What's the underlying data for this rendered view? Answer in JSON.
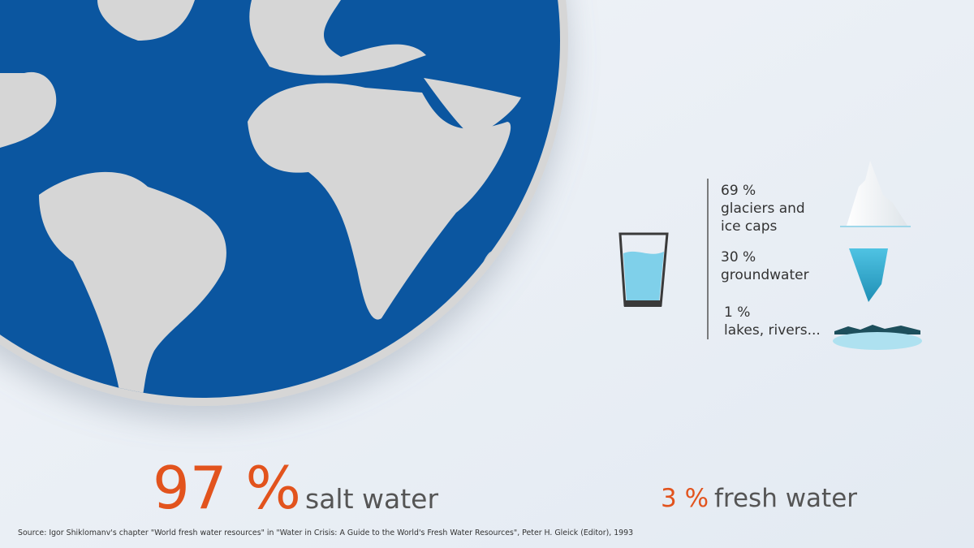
{
  "salt": {
    "value": "97 %",
    "label": "salt water"
  },
  "fresh": {
    "value": "3 %",
    "label": "fresh water"
  },
  "breakdown": [
    {
      "value": "69 %",
      "label_lines": [
        "glaciers and",
        "ice caps"
      ]
    },
    {
      "value": "30 %",
      "label_lines": [
        "groundwater"
      ]
    },
    {
      "value": "1 %",
      "label_lines": [
        "lakes, rivers..."
      ]
    }
  ],
  "source": "Source: Igor Shiklomanv's chapter \"World fresh water resources\" in \"Water in Crisis: A Guide to the World's Fresh Water Resources\", Peter H. Gleick (Editor), 1993"
}
